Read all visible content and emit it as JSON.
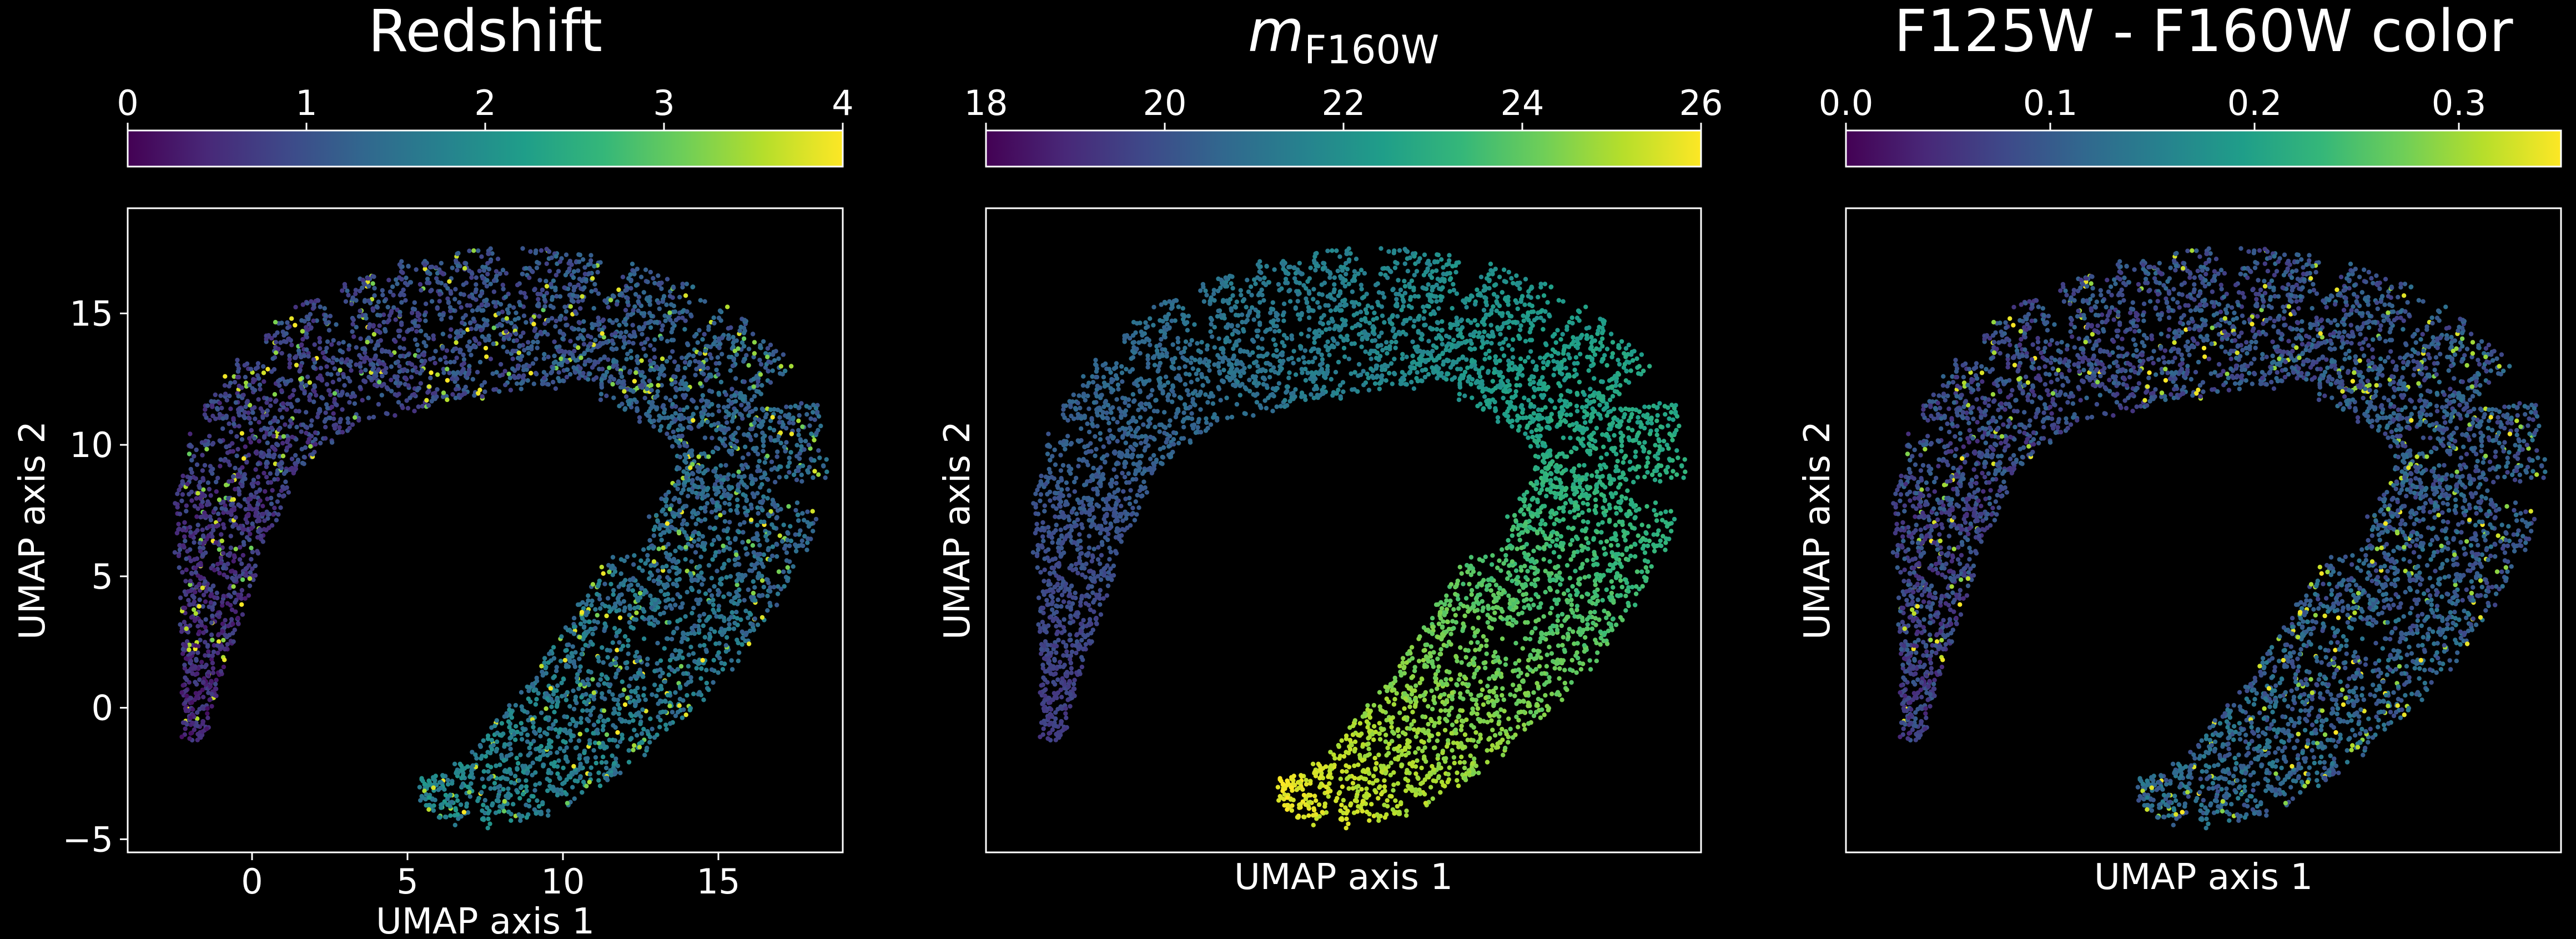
{
  "figure": {
    "background": "#000000",
    "foreground": "#ffffff"
  },
  "colormap": {
    "name": "viridis",
    "stops": [
      "#440154",
      "#482878",
      "#3e4989",
      "#31688e",
      "#26828e",
      "#1f9e89",
      "#35b779",
      "#6ece58",
      "#b5de2b",
      "#fde725"
    ]
  },
  "shared_axes": {
    "xlabel": "UMAP axis 1",
    "ylabel": "UMAP axis 2",
    "xlim": [
      -4,
      19
    ],
    "ylim": [
      -5.5,
      19
    ],
    "xticks": [
      0,
      5,
      10,
      15
    ],
    "xtick_labels": [
      "0",
      "5",
      "10",
      "15"
    ],
    "yticks": [
      -5,
      0,
      5,
      10,
      15
    ],
    "ytick_labels": [
      "−5",
      "0",
      "5",
      "10",
      "15"
    ]
  },
  "chart_data": [
    {
      "type": "scatter",
      "title": "Redshift",
      "colorbar": {
        "label": "Redshift",
        "range": [
          0,
          4
        ],
        "ticks": [
          "0",
          "1",
          "2",
          "3",
          "4"
        ],
        "position": "top"
      },
      "xlabel": "UMAP axis 1",
      "ylabel": "UMAP axis 2",
      "show_x_ticks": true,
      "show_y_ticks": true,
      "color_trend": "mostly low values (0.5–1.5) in upper-left arc; higher values (2–4) increasing toward lower-right tail",
      "approx_color_range_shown": [
        0,
        4
      ]
    },
    {
      "type": "scatter",
      "title": "m",
      "title_subscript": "F160W",
      "colorbar": {
        "label": "m_F160W",
        "range": [
          18,
          26
        ],
        "ticks": [
          "18",
          "20",
          "22",
          "24",
          "26"
        ],
        "position": "top"
      },
      "xlabel": "UMAP axis 1",
      "ylabel": "UMAP axis 2",
      "show_x_ticks": false,
      "show_y_ticks": false,
      "color_trend": "bright (~18–20) at upper-left tip, ~21–23 across top arc, faint (~24–26) toward lower tail",
      "approx_color_range_shown": [
        18,
        26
      ]
    },
    {
      "type": "scatter",
      "title": "F125W - F160W color",
      "colorbar": {
        "label": "F125W - F160W color",
        "range": [
          0,
          0.35
        ],
        "ticks": [
          "0.0",
          "0.1",
          "0.2",
          "0.3"
        ],
        "position": "top"
      },
      "xlabel": "UMAP axis 1",
      "ylabel": "UMAP axis 2",
      "show_x_ticks": false,
      "show_y_ticks": false,
      "color_trend": "mostly low (~0.05–0.15) throughout; scattered higher values (~0.25–0.35) in lower tail",
      "approx_color_range_shown": [
        0,
        0.35
      ]
    }
  ]
}
